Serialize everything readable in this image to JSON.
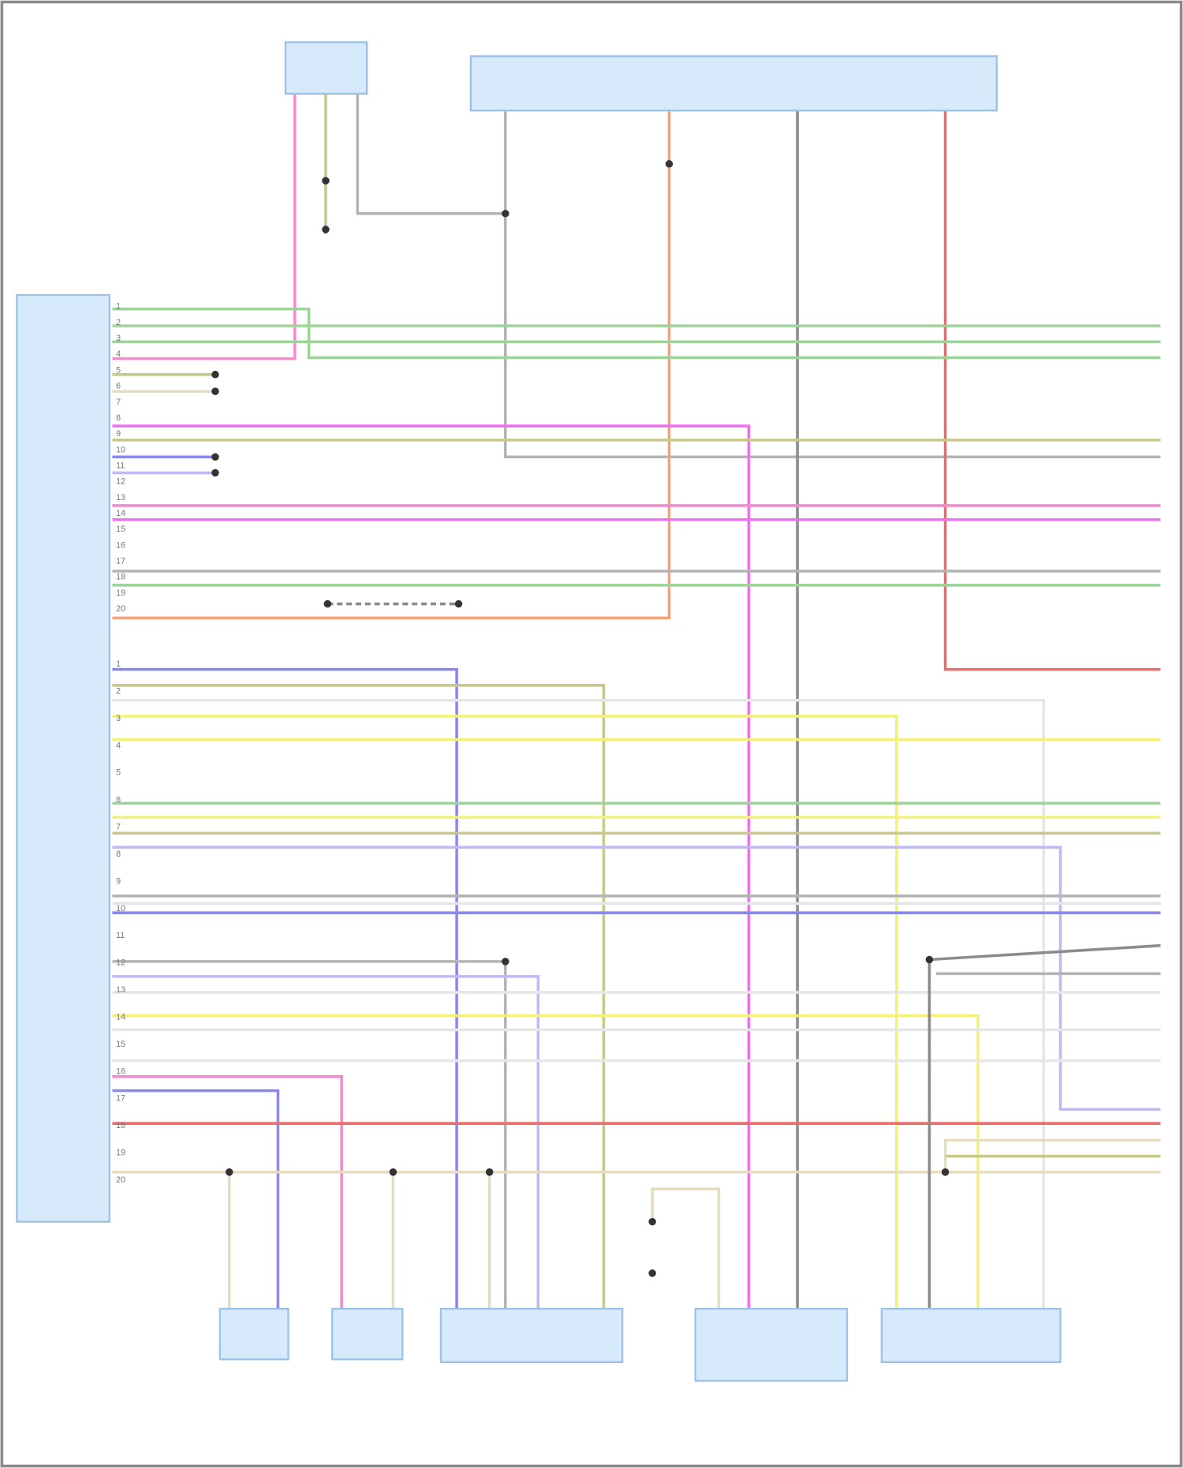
{
  "diagram": {
    "colors": {
      "module_fill": "#d6eafc",
      "module_stroke": "#9cc3e6",
      "frame": "#8a8a8a",
      "pink": "#f48ad0",
      "magenta": "#f070f0",
      "green": "#9fd39a",
      "olive": "#c8c88a",
      "gray": "#b4b4b4",
      "dark_gray": "#8c8c8c",
      "orange": "#f7a27a",
      "red": "#f06a6a",
      "blue": "#8888f0",
      "lavender": "#c2b8f4",
      "yellow": "#f2f27a",
      "tan": "#e6dcc0",
      "light": "#e6e6e6"
    },
    "left_module_pins_upper": [
      "1",
      "2",
      "3",
      "4",
      "5",
      "6",
      "7",
      "8",
      "9",
      "10",
      "11",
      "12",
      "13",
      "14",
      "15",
      "16",
      "17",
      "18",
      "19",
      "20"
    ],
    "left_module_pins_lower": [
      "1",
      "2",
      "3",
      "4",
      "5",
      "6",
      "7",
      "8",
      "9",
      "10",
      "11",
      "12",
      "13",
      "14",
      "15",
      "16",
      "17",
      "18",
      "19",
      "20"
    ]
  }
}
